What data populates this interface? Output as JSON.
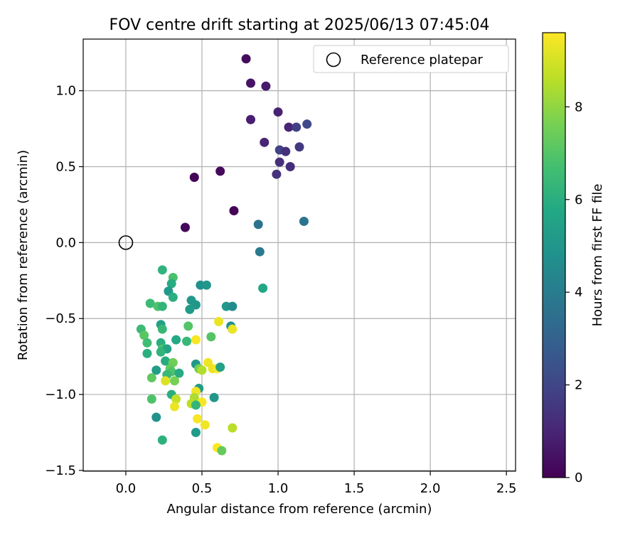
{
  "chart_data": {
    "type": "scatter",
    "title": "FOV centre drift starting at 2025/06/13 07:45:04",
    "xlabel": "Angular distance from reference (arcmin)",
    "ylabel": "Rotation from reference (arcmin)",
    "xlim": [
      -0.28,
      2.56
    ],
    "ylim": [
      -1.505,
      1.34
    ],
    "xticks": [
      0.0,
      0.5,
      1.0,
      1.5,
      2.0,
      2.5
    ],
    "xtick_labels": [
      "0.0",
      "0.5",
      "1.0",
      "1.5",
      "2.0",
      "2.5"
    ],
    "yticks": [
      -1.5,
      -1.0,
      -0.5,
      0.0,
      0.5,
      1.0
    ],
    "ytick_labels": [
      "−1.5",
      "−1.0",
      "−0.5",
      "0.0",
      "0.5",
      "1.0"
    ],
    "grid": true,
    "legend": {
      "position": "top-right",
      "entries": [
        "Reference platepar"
      ]
    },
    "reference_point": {
      "name": "Reference platepar",
      "x": 0.0,
      "y": 0.0
    },
    "colorbar": {
      "label": "Hours from first FF file",
      "colormap": "viridis",
      "range": [
        0,
        9.6
      ],
      "ticks": [
        0,
        2,
        4,
        6,
        8
      ],
      "tick_labels": [
        "0",
        "2",
        "4",
        "6",
        "8"
      ]
    },
    "points": [
      {
        "x": 0.79,
        "y": 1.21,
        "c": 0.3
      },
      {
        "x": 0.82,
        "y": 1.05,
        "c": 0.5
      },
      {
        "x": 0.92,
        "y": 1.03,
        "c": 0.7
      },
      {
        "x": 1.0,
        "y": 0.86,
        "c": 0.9
      },
      {
        "x": 0.82,
        "y": 0.81,
        "c": 0.8
      },
      {
        "x": 1.07,
        "y": 0.76,
        "c": 1.0
      },
      {
        "x": 1.12,
        "y": 0.76,
        "c": 1.8
      },
      {
        "x": 1.19,
        "y": 0.78,
        "c": 2.1
      },
      {
        "x": 0.91,
        "y": 0.66,
        "c": 1.0
      },
      {
        "x": 1.01,
        "y": 0.61,
        "c": 1.9
      },
      {
        "x": 1.05,
        "y": 0.6,
        "c": 1.3
      },
      {
        "x": 1.14,
        "y": 0.63,
        "c": 1.6
      },
      {
        "x": 1.01,
        "y": 0.53,
        "c": 1.3
      },
      {
        "x": 1.08,
        "y": 0.5,
        "c": 1.2
      },
      {
        "x": 0.99,
        "y": 0.45,
        "c": 1.4
      },
      {
        "x": 0.45,
        "y": 0.43,
        "c": 0.1
      },
      {
        "x": 0.62,
        "y": 0.47,
        "c": 0.2
      },
      {
        "x": 0.71,
        "y": 0.21,
        "c": 0.1
      },
      {
        "x": 0.39,
        "y": 0.1,
        "c": 0.2
      },
      {
        "x": 0.87,
        "y": 0.12,
        "c": 3.6
      },
      {
        "x": 1.17,
        "y": 0.14,
        "c": 3.7
      },
      {
        "x": 0.88,
        "y": -0.06,
        "c": 3.9
      },
      {
        "x": 0.9,
        "y": -0.3,
        "c": 5.7
      },
      {
        "x": 0.24,
        "y": -0.18,
        "c": 6.2
      },
      {
        "x": 0.31,
        "y": -0.23,
        "c": 6.8
      },
      {
        "x": 0.3,
        "y": -0.27,
        "c": 5.9
      },
      {
        "x": 0.49,
        "y": -0.28,
        "c": 4.8
      },
      {
        "x": 0.53,
        "y": -0.28,
        "c": 5.0
      },
      {
        "x": 0.28,
        "y": -0.32,
        "c": 5.2
      },
      {
        "x": 0.31,
        "y": -0.36,
        "c": 6.0
      },
      {
        "x": 0.43,
        "y": -0.38,
        "c": 5.1
      },
      {
        "x": 0.46,
        "y": -0.41,
        "c": 5.0
      },
      {
        "x": 0.42,
        "y": -0.44,
        "c": 5.2
      },
      {
        "x": 0.16,
        "y": -0.4,
        "c": 6.5
      },
      {
        "x": 0.21,
        "y": -0.42,
        "c": 6.9
      },
      {
        "x": 0.24,
        "y": -0.42,
        "c": 6.3
      },
      {
        "x": 0.66,
        "y": -0.42,
        "c": 5.1
      },
      {
        "x": 0.7,
        "y": -0.42,
        "c": 4.6
      },
      {
        "x": 0.23,
        "y": -0.54,
        "c": 5.4
      },
      {
        "x": 0.41,
        "y": -0.55,
        "c": 7.0
      },
      {
        "x": 0.69,
        "y": -0.55,
        "c": 4.8
      },
      {
        "x": 0.1,
        "y": -0.57,
        "c": 6.5
      },
      {
        "x": 0.24,
        "y": -0.57,
        "c": 6.4
      },
      {
        "x": 0.12,
        "y": -0.61,
        "c": 7.1
      },
      {
        "x": 0.56,
        "y": -0.62,
        "c": 7.0
      },
      {
        "x": 0.61,
        "y": -0.52,
        "c": 9.3
      },
      {
        "x": 0.7,
        "y": -0.57,
        "c": 9.3
      },
      {
        "x": 0.14,
        "y": -0.66,
        "c": 6.6
      },
      {
        "x": 0.23,
        "y": -0.66,
        "c": 6.0
      },
      {
        "x": 0.33,
        "y": -0.64,
        "c": 5.8
      },
      {
        "x": 0.4,
        "y": -0.65,
        "c": 6.4
      },
      {
        "x": 0.46,
        "y": -0.64,
        "c": 9.5
      },
      {
        "x": 0.24,
        "y": -0.7,
        "c": 6.8
      },
      {
        "x": 0.27,
        "y": -0.7,
        "c": 5.6
      },
      {
        "x": 0.23,
        "y": -0.72,
        "c": 6.2
      },
      {
        "x": 0.14,
        "y": -0.73,
        "c": 6.0
      },
      {
        "x": 0.26,
        "y": -0.78,
        "c": 5.9
      },
      {
        "x": 0.31,
        "y": -0.79,
        "c": 7.5
      },
      {
        "x": 0.46,
        "y": -0.8,
        "c": 5.0
      },
      {
        "x": 0.54,
        "y": -0.79,
        "c": 9.4
      },
      {
        "x": 0.2,
        "y": -0.84,
        "c": 5.3
      },
      {
        "x": 0.29,
        "y": -0.83,
        "c": 7.3
      },
      {
        "x": 0.3,
        "y": -0.85,
        "c": 6.9
      },
      {
        "x": 0.35,
        "y": -0.86,
        "c": 5.9
      },
      {
        "x": 0.48,
        "y": -0.83,
        "c": 7.5
      },
      {
        "x": 0.5,
        "y": -0.84,
        "c": 8.5
      },
      {
        "x": 0.57,
        "y": -0.83,
        "c": 9.3
      },
      {
        "x": 0.6,
        "y": -0.83,
        "c": 9.5
      },
      {
        "x": 0.62,
        "y": -0.82,
        "c": 5.5
      },
      {
        "x": 0.17,
        "y": -0.89,
        "c": 7.2
      },
      {
        "x": 0.27,
        "y": -0.87,
        "c": 6.4
      },
      {
        "x": 0.32,
        "y": -0.91,
        "c": 7.6
      },
      {
        "x": 0.26,
        "y": -0.91,
        "c": 9.1
      },
      {
        "x": 0.48,
        "y": -0.96,
        "c": 5.2
      },
      {
        "x": 0.3,
        "y": -1.0,
        "c": 6.0
      },
      {
        "x": 0.46,
        "y": -0.98,
        "c": 9.4
      },
      {
        "x": 0.45,
        "y": -1.02,
        "c": 8.4
      },
      {
        "x": 0.58,
        "y": -1.02,
        "c": 5.0
      },
      {
        "x": 0.17,
        "y": -1.03,
        "c": 6.9
      },
      {
        "x": 0.33,
        "y": -1.03,
        "c": 8.7
      },
      {
        "x": 0.5,
        "y": -1.05,
        "c": 9.5
      },
      {
        "x": 0.43,
        "y": -1.06,
        "c": 8.6
      },
      {
        "x": 0.46,
        "y": -1.07,
        "c": 6.3
      },
      {
        "x": 0.32,
        "y": -1.08,
        "c": 9.3
      },
      {
        "x": 0.2,
        "y": -1.15,
        "c": 4.9
      },
      {
        "x": 0.47,
        "y": -1.16,
        "c": 9.5
      },
      {
        "x": 0.52,
        "y": -1.2,
        "c": 9.4
      },
      {
        "x": 0.7,
        "y": -1.22,
        "c": 8.6
      },
      {
        "x": 0.46,
        "y": -1.25,
        "c": 5.2
      },
      {
        "x": 0.24,
        "y": -1.3,
        "c": 6.1
      },
      {
        "x": 0.6,
        "y": -1.35,
        "c": 9.6
      },
      {
        "x": 0.63,
        "y": -1.37,
        "c": 7.3
      }
    ]
  }
}
